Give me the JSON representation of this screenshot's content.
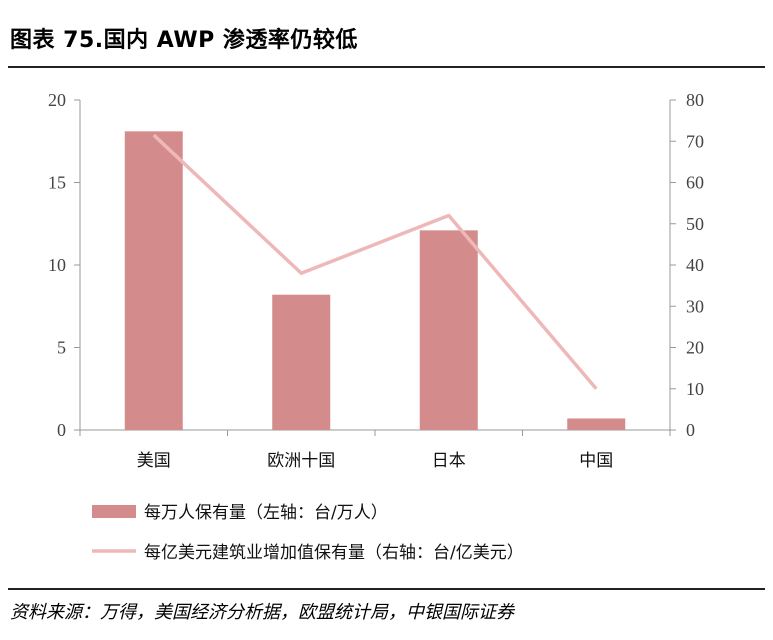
{
  "title": "图表 75.国内 AWP 渗透率仍较低",
  "source": "资料来源：万得，美国经济分析据，欧盟统计局，中银国际证券",
  "colors": {
    "bar": "#d38b8b",
    "line": "#efb8b8",
    "axis": "#999999"
  },
  "chart_data": {
    "type": "bar",
    "categories": [
      "美国",
      "欧洲十国",
      "日本",
      "中国"
    ],
    "series": [
      {
        "name": "每万人保有量（左轴：台/万人）",
        "type": "bar",
        "axis": "left",
        "values": [
          18.1,
          8.2,
          12.1,
          0.7
        ]
      },
      {
        "name": "每亿美元建筑业增加值保有量（右轴：台/亿美元）",
        "type": "line",
        "axis": "right",
        "values": [
          71.5,
          38,
          52,
          10
        ]
      }
    ],
    "y_left": {
      "lim": [
        0,
        20
      ],
      "ticks": [
        "0",
        "5",
        "10",
        "15",
        "20"
      ]
    },
    "y_right": {
      "lim": [
        0,
        80
      ],
      "ticks": [
        "0",
        "10",
        "20",
        "30",
        "40",
        "50",
        "60",
        "70",
        "80"
      ]
    },
    "legend_position": "bottom",
    "grid": false
  }
}
